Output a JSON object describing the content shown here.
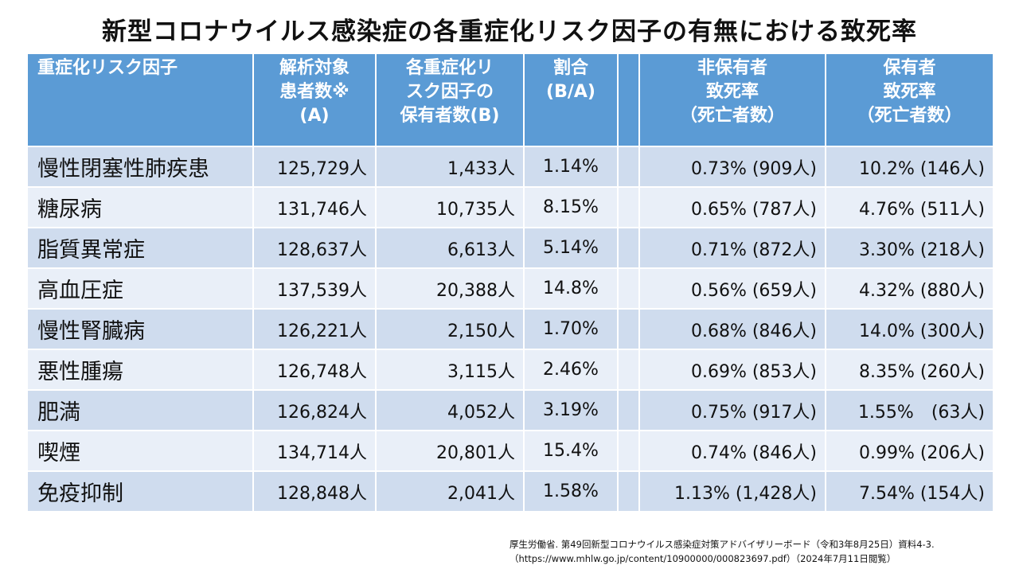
{
  "title": "新型コロナウイルス感染症の各重症化リスク因子の有無における致死率",
  "table": {
    "headers": {
      "factor": "重症化リスク因子",
      "analyzed": "解析対象\n患者数※\n(A)",
      "holders": "各重症化リ\nスク因子の\n保有者数(B)",
      "ratio": "割合\n(B/A)",
      "non_holder_fatality": "非保有者\n致死率\n（死亡者数）",
      "holder_fatality": "保有者\n致死率\n（死亡者数）"
    },
    "rows": [
      {
        "factor": "慢性閉塞性肺疾患",
        "analyzed": "125,729人",
        "holders": "1,433人",
        "ratio": "1.14%",
        "non_holder": "0.73% (909人)",
        "holder": "10.2% (146人)"
      },
      {
        "factor": "糖尿病",
        "analyzed": "131,746人",
        "holders": "10,735人",
        "ratio": "8.15%",
        "non_holder": "0.65% (787人)",
        "holder": "4.76% (511人)"
      },
      {
        "factor": "脂質異常症",
        "analyzed": "128,637人",
        "holders": "6,613人",
        "ratio": "5.14%",
        "non_holder": "0.71% (872人)",
        "holder": "3.30% (218人)"
      },
      {
        "factor": "高血圧症",
        "analyzed": "137,539人",
        "holders": "20,388人",
        "ratio": "14.8%",
        "non_holder": "0.56% (659人)",
        "holder": "4.32% (880人)"
      },
      {
        "factor": "慢性腎臓病",
        "analyzed": "126,221人",
        "holders": "2,150人",
        "ratio": "1.70%",
        "non_holder": "0.68% (846人)",
        "holder": "14.0% (300人)"
      },
      {
        "factor": "悪性腫瘍",
        "analyzed": "126,748人",
        "holders": "3,115人",
        "ratio": "2.46%",
        "non_holder": "0.69% (853人)",
        "holder": "8.35% (260人)"
      },
      {
        "factor": "肥満",
        "analyzed": "126,824人",
        "holders": "4,052人",
        "ratio": "3.19%",
        "non_holder": "0.75% (917人)",
        "holder": "1.55%　(63人)"
      },
      {
        "factor": "喫煙",
        "analyzed": "134,714人",
        "holders": "20,801人",
        "ratio": "15.4%",
        "non_holder": "0.74% (846人)",
        "holder": "0.99% (206人)"
      },
      {
        "factor": "免疫抑制",
        "analyzed": "128,848人",
        "holders": "2,041人",
        "ratio": "1.58%",
        "non_holder": "1.13% (1,428人)",
        "holder": "7.54% (154人)"
      }
    ]
  },
  "source": {
    "line1": "厚生労働省. 第49回新型コロナウイルス感染症対策アドバイザリーボード（令和3年8月25日）資料4-3.",
    "line2": "（https://www.mhlw.go.jp/content/10900000/000823697.pdf）（2024年7月11日閲覧）"
  }
}
